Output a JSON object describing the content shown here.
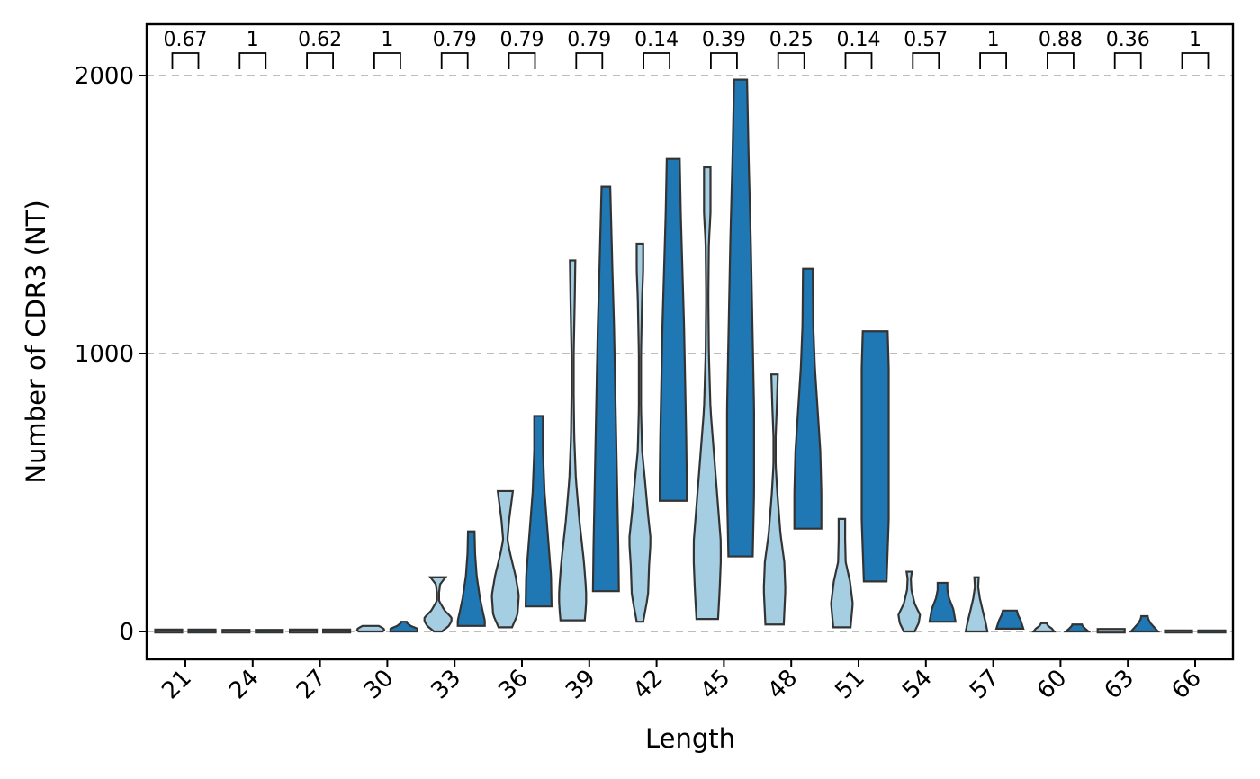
{
  "chart_data": {
    "type": "violin",
    "xlabel": "Length",
    "ylabel": "Number of CDR3 (NT)",
    "ylim": [
      -100,
      2190
    ],
    "yticks": [
      0,
      1000,
      2000
    ],
    "grid": "horizontal dashed at y ticks",
    "categories": [
      "21",
      "24",
      "27",
      "30",
      "33",
      "36",
      "39",
      "42",
      "45",
      "48",
      "51",
      "54",
      "57",
      "60",
      "63",
      "66"
    ],
    "p_values": [
      "0.67",
      "1",
      "0.62",
      "1",
      "0.79",
      "0.79",
      "0.79",
      "0.14",
      "0.39",
      "0.25",
      "0.14",
      "0.57",
      "1",
      "0.88",
      "0.36",
      "1"
    ],
    "series": [
      {
        "color": "#a6cee3",
        "violins": [
          {
            "min": 0,
            "max": 3,
            "profile": [
              [
                0,
                50
              ],
              [
                1,
                50
              ],
              [
                3,
                50
              ]
            ]
          },
          {
            "min": 0,
            "max": 2,
            "profile": [
              [
                0,
                50
              ],
              [
                1,
                50
              ],
              [
                2,
                50
              ]
            ]
          },
          {
            "min": 0,
            "max": 3,
            "profile": [
              [
                0,
                50
              ],
              [
                1,
                50
              ],
              [
                3,
                50
              ]
            ]
          },
          {
            "min": 0,
            "max": 20,
            "profile": [
              [
                0,
                45
              ],
              [
                5,
                50
              ],
              [
                10,
                48
              ],
              [
                15,
                40
              ],
              [
                20,
                30
              ]
            ]
          },
          {
            "min": 0,
            "max": 195,
            "profile": [
              [
                0,
                15
              ],
              [
                20,
                40
              ],
              [
                45,
                55
              ],
              [
                75,
                25
              ],
              [
                110,
                4
              ],
              [
                140,
                4
              ],
              [
                170,
                8
              ],
              [
                195,
                28
              ]
            ]
          },
          {
            "min": 15,
            "max": 505,
            "profile": [
              [
                15,
                25
              ],
              [
                60,
                45
              ],
              [
                130,
                50
              ],
              [
                200,
                38
              ],
              [
                280,
                18
              ],
              [
                330,
                8
              ],
              [
                400,
                14
              ],
              [
                460,
                22
              ],
              [
                505,
                28
              ]
            ]
          },
          {
            "min": 40,
            "max": 1335,
            "profile": [
              [
                40,
                45
              ],
              [
                120,
                52
              ],
              [
                250,
                42
              ],
              [
                400,
                25
              ],
              [
                550,
                12
              ],
              [
                700,
                6
              ],
              [
                850,
                4
              ],
              [
                1000,
                4
              ],
              [
                1100,
                6
              ],
              [
                1200,
                8
              ],
              [
                1335,
                10
              ]
            ]
          },
          {
            "min": 35,
            "max": 1395,
            "profile": [
              [
                35,
                12
              ],
              [
                130,
                30
              ],
              [
                240,
                34
              ],
              [
                330,
                40
              ],
              [
                420,
                30
              ],
              [
                550,
                18
              ],
              [
                650,
                8
              ],
              [
                800,
                4
              ],
              [
                1000,
                4
              ],
              [
                1200,
                8
              ],
              [
                1300,
                12
              ],
              [
                1395,
                12
              ]
            ]
          },
          {
            "min": 45,
            "max": 1670,
            "profile": [
              [
                45,
                40
              ],
              [
                150,
                46
              ],
              [
                300,
                52
              ],
              [
                450,
                40
              ],
              [
                600,
                28
              ],
              [
                800,
                12
              ],
              [
                1000,
                6
              ],
              [
                1200,
                4
              ],
              [
                1400,
                6
              ],
              [
                1500,
                12
              ],
              [
                1600,
                12
              ],
              [
                1670,
                12
              ]
            ]
          },
          {
            "min": 25,
            "max": 925,
            "profile": [
              [
                25,
                34
              ],
              [
                150,
                40
              ],
              [
                250,
                36
              ],
              [
                350,
                22
              ],
              [
                500,
                10
              ],
              [
                600,
                4
              ],
              [
                700,
                4
              ],
              [
                800,
                8
              ],
              [
                925,
                12
              ]
            ]
          },
          {
            "min": 15,
            "max": 405,
            "profile": [
              [
                15,
                32
              ],
              [
                100,
                40
              ],
              [
                180,
                30
              ],
              [
                250,
                14
              ],
              [
                330,
                12
              ],
              [
                405,
                12
              ]
            ]
          },
          {
            "min": 0,
            "max": 215,
            "profile": [
              [
                0,
                20
              ],
              [
                30,
                35
              ],
              [
                60,
                40
              ],
              [
                100,
                20
              ],
              [
                150,
                8
              ],
              [
                190,
                6
              ],
              [
                215,
                10
              ]
            ]
          },
          {
            "min": 0,
            "max": 195,
            "profile": [
              [
                0,
                40
              ],
              [
                30,
                34
              ],
              [
                70,
                24
              ],
              [
                120,
                12
              ],
              [
                160,
                6
              ],
              [
                195,
                8
              ]
            ]
          },
          {
            "min": 0,
            "max": 30,
            "profile": [
              [
                0,
                38
              ],
              [
                10,
                30
              ],
              [
                20,
                16
              ],
              [
                30,
                10
              ]
            ]
          },
          {
            "min": 0,
            "max": 5,
            "profile": [
              [
                0,
                40
              ],
              [
                3,
                25
              ],
              [
                5,
                15
              ]
            ]
          },
          {
            "min": 0,
            "max": 0,
            "profile": [
              [
                0,
                50
              ]
            ]
          }
        ]
      },
      {
        "color": "#1f78b4",
        "violins": [
          {
            "min": 0,
            "max": 3,
            "profile": [
              [
                0,
                50
              ],
              [
                1,
                50
              ],
              [
                3,
                50
              ]
            ]
          },
          {
            "min": 0,
            "max": 2,
            "profile": [
              [
                0,
                50
              ],
              [
                1,
                50
              ],
              [
                2,
                50
              ]
            ]
          },
          {
            "min": 0,
            "max": 3,
            "profile": [
              [
                0,
                50
              ],
              [
                1,
                50
              ],
              [
                3,
                50
              ]
            ]
          },
          {
            "min": 0,
            "max": 35,
            "profile": [
              [
                0,
                55
              ],
              [
                10,
                50
              ],
              [
                20,
                25
              ],
              [
                30,
                12
              ],
              [
                35,
                10
              ]
            ]
          },
          {
            "min": 20,
            "max": 360,
            "profile": [
              [
                20,
                55
              ],
              [
                60,
                45
              ],
              [
                120,
                32
              ],
              [
                200,
                20
              ],
              [
                280,
                14
              ],
              [
                360,
                12
              ]
            ]
          },
          {
            "min": 90,
            "max": 775,
            "profile": [
              [
                90,
                48
              ],
              [
                200,
                46
              ],
              [
                350,
                34
              ],
              [
                500,
                22
              ],
              [
                650,
                16
              ],
              [
                775,
                16
              ]
            ]
          },
          {
            "min": 145,
            "max": 1600,
            "profile": [
              [
                145,
                48
              ],
              [
                300,
                46
              ],
              [
                500,
                42
              ],
              [
                700,
                38
              ],
              [
                900,
                34
              ],
              [
                1100,
                30
              ],
              [
                1300,
                24
              ],
              [
                1450,
                20
              ],
              [
                1600,
                16
              ]
            ]
          },
          {
            "min": 470,
            "max": 1700,
            "profile": [
              [
                470,
                50
              ],
              [
                550,
                50
              ],
              [
                700,
                48
              ],
              [
                900,
                44
              ],
              [
                1100,
                40
              ],
              [
                1300,
                34
              ],
              [
                1500,
                28
              ],
              [
                1700,
                24
              ]
            ]
          },
          {
            "min": 270,
            "max": 1985,
            "profile": [
              [
                270,
                45
              ],
              [
                500,
                50
              ],
              [
                800,
                50
              ],
              [
                1100,
                44
              ],
              [
                1400,
                38
              ],
              [
                1700,
                30
              ],
              [
                1985,
                24
              ]
            ]
          },
          {
            "min": 370,
            "max": 1305,
            "profile": [
              [
                370,
                50
              ],
              [
                500,
                50
              ],
              [
                650,
                46
              ],
              [
                800,
                36
              ],
              [
                950,
                26
              ],
              [
                1100,
                20
              ],
              [
                1305,
                18
              ]
            ]
          },
          {
            "min": 180,
            "max": 1080,
            "profile": [
              [
                180,
                42
              ],
              [
                400,
                50
              ],
              [
                600,
                54
              ],
              [
                800,
                54
              ],
              [
                950,
                50
              ],
              [
                1080,
                46
              ]
            ]
          },
          {
            "min": 35,
            "max": 175,
            "profile": [
              [
                35,
                48
              ],
              [
                80,
                40
              ],
              [
                120,
                24
              ],
              [
                150,
                18
              ],
              [
                175,
                18
              ]
            ]
          },
          {
            "min": 10,
            "max": 75,
            "profile": [
              [
                10,
                50
              ],
              [
                40,
                40
              ],
              [
                60,
                30
              ],
              [
                75,
                26
              ]
            ]
          },
          {
            "min": 0,
            "max": 25,
            "profile": [
              [
                0,
                42
              ],
              [
                10,
                30
              ],
              [
                20,
                20
              ],
              [
                25,
                18
              ]
            ]
          },
          {
            "min": 0,
            "max": 55,
            "profile": [
              [
                0,
                50
              ],
              [
                15,
                36
              ],
              [
                30,
                22
              ],
              [
                45,
                14
              ],
              [
                55,
                12
              ]
            ]
          },
          {
            "min": 0,
            "max": 0,
            "profile": [
              [
                0,
                50
              ]
            ]
          }
        ]
      }
    ]
  }
}
